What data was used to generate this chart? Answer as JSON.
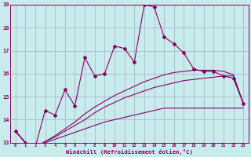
{
  "xlabel": "Windchill (Refroidissement éolien,°C)",
  "background_color": "#c8ecec",
  "grid_color": "#aaaacc",
  "line_color": "#880066",
  "x": [
    0,
    1,
    2,
    3,
    4,
    5,
    6,
    7,
    8,
    9,
    10,
    11,
    12,
    13,
    14,
    15,
    16,
    17,
    18,
    19,
    20,
    21,
    22,
    23
  ],
  "y_main": [
    13.5,
    13.0,
    12.8,
    14.4,
    14.2,
    15.3,
    14.6,
    16.7,
    15.9,
    16.0,
    17.2,
    17.1,
    16.5,
    19.0,
    18.9,
    17.6,
    17.3,
    16.9,
    16.2,
    16.1,
    16.1,
    15.9,
    15.8,
    14.7
  ],
  "y_line2": [
    13.5,
    13.0,
    12.8,
    13.0,
    13.15,
    13.3,
    13.45,
    13.6,
    13.75,
    13.9,
    14.0,
    14.1,
    14.2,
    14.3,
    14.4,
    14.5,
    14.5,
    14.5,
    14.5,
    14.5,
    14.5,
    14.5,
    14.5,
    14.5
  ],
  "y_line3": [
    13.5,
    13.0,
    12.8,
    13.05,
    13.25,
    13.5,
    13.75,
    14.0,
    14.3,
    14.55,
    14.75,
    14.95,
    15.1,
    15.25,
    15.4,
    15.5,
    15.6,
    15.7,
    15.75,
    15.8,
    15.85,
    15.9,
    15.9,
    14.7
  ],
  "y_line4": [
    13.5,
    13.0,
    12.8,
    13.05,
    13.3,
    13.6,
    13.9,
    14.25,
    14.55,
    14.8,
    15.05,
    15.25,
    15.45,
    15.65,
    15.8,
    15.95,
    16.05,
    16.1,
    16.15,
    16.15,
    16.15,
    16.1,
    15.95,
    14.7
  ],
  "ylim": [
    13,
    19
  ],
  "xlim": [
    -0.5,
    23.5
  ],
  "yticks": [
    13,
    14,
    15,
    16,
    17,
    18,
    19
  ],
  "xticks": [
    0,
    1,
    2,
    3,
    4,
    5,
    6,
    7,
    8,
    9,
    10,
    11,
    12,
    13,
    14,
    15,
    16,
    17,
    18,
    19,
    20,
    21,
    22,
    23
  ]
}
